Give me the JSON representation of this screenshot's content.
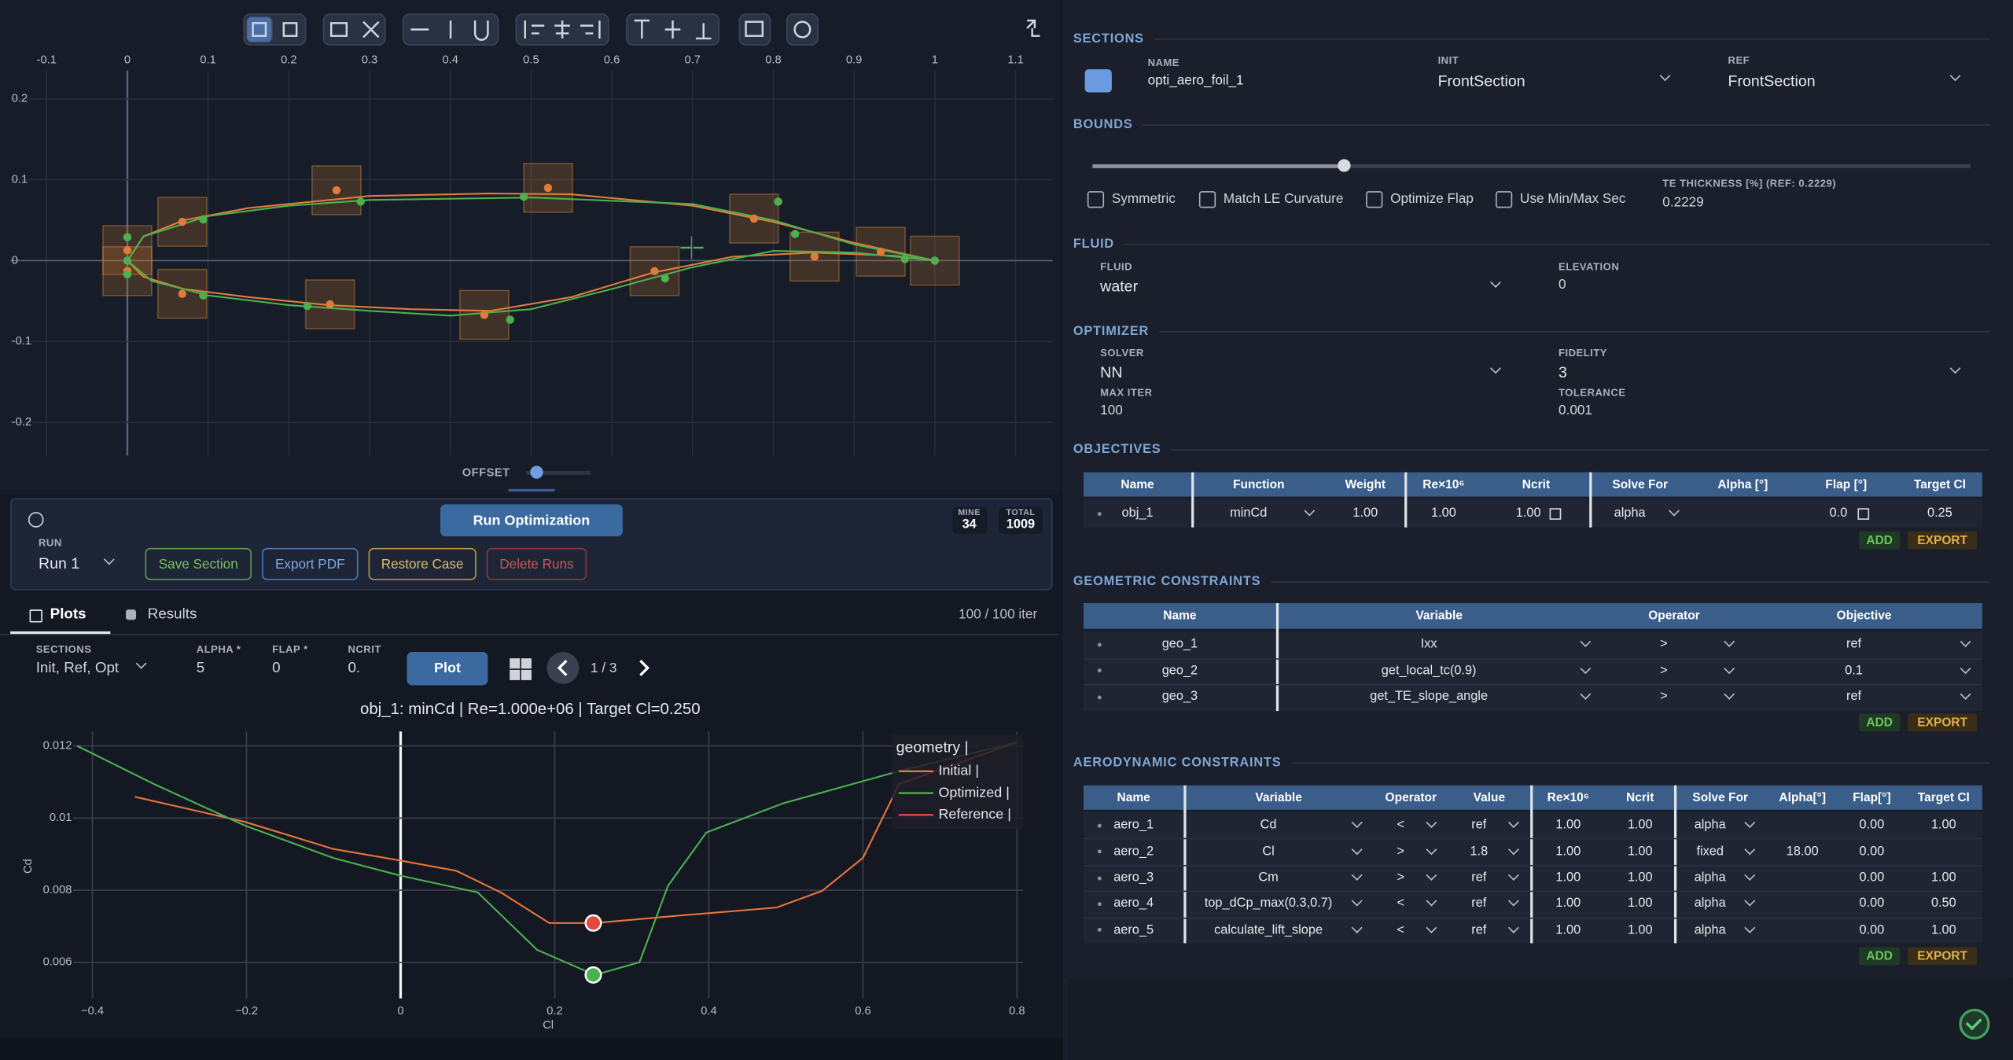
{
  "chart_data": [
    {
      "type": "line",
      "xlim": [
        -0.145,
        1.146
      ],
      "ylim": [
        -0.241,
        0.235
      ],
      "xticks": [
        -0.1,
        0,
        0.1,
        0.2,
        0.3,
        0.4,
        0.5,
        0.6,
        0.7,
        0.8,
        0.9,
        1,
        1.1
      ],
      "yticks": [
        -0.2,
        -0.1,
        0,
        0.1,
        0.2
      ],
      "grid": true,
      "series": [
        {
          "color": "#e07b39",
          "x": [
            0,
            0.02,
            0.07,
            0.15,
            0.3,
            0.45,
            0.55,
            0.7,
            0.8,
            0.9,
            1
          ],
          "values": [
            0,
            0.03,
            0.05,
            0.065,
            0.08,
            0.083,
            0.082,
            0.068,
            0.048,
            0.022,
            0
          ]
        },
        {
          "color": "#e07b39",
          "x": [
            0,
            0.02,
            0.07,
            0.15,
            0.25,
            0.35,
            0.45,
            0.55,
            0.65,
            0.75,
            0.85,
            0.95,
            1
          ],
          "values": [
            0,
            -0.02,
            -0.035,
            -0.045,
            -0.055,
            -0.06,
            -0.062,
            -0.045,
            -0.015,
            0.005,
            0.01,
            0.006,
            0
          ]
        },
        {
          "color": "#4caf50",
          "x": [
            0,
            0.02,
            0.1,
            0.2,
            0.3,
            0.5,
            0.7,
            0.8,
            0.9,
            1
          ],
          "values": [
            0,
            0.03,
            0.055,
            0.068,
            0.075,
            0.078,
            0.07,
            0.05,
            0.02,
            0
          ]
        },
        {
          "color": "#4caf50",
          "x": [
            0,
            0.03,
            0.1,
            0.2,
            0.3,
            0.4,
            0.5,
            0.6,
            0.7,
            0.8,
            0.9,
            1
          ],
          "values": [
            0,
            -0.025,
            -0.043,
            -0.055,
            -0.062,
            -0.068,
            -0.06,
            -0.035,
            -0.008,
            0.012,
            0.01,
            0
          ]
        }
      ],
      "points": [
        {
          "color": "#e07b39",
          "box": true,
          "x": [
            0,
            0,
            0.068,
            0.259,
            0.521,
            0.776,
            0.851,
            0.933,
            1,
            0.068,
            0.251,
            0.442,
            0.653
          ],
          "values": [
            0.013,
            -0.013,
            0.048,
            0.087,
            0.09,
            0.052,
            0.005,
            0.011,
            0,
            -0.041,
            -0.054,
            -0.067,
            -0.013
          ]
        },
        {
          "color": "#4caf50",
          "box": false,
          "x": [
            0,
            0,
            0,
            0.094,
            0.289,
            0.491,
            0.806,
            0.827,
            0.963,
            1,
            0.094,
            0.223,
            0.474,
            0.666
          ],
          "values": [
            0.029,
            0,
            -0.017,
            0.051,
            0.073,
            0.079,
            0.073,
            0.033,
            0.002,
            0,
            -0.043,
            -0.056,
            -0.073,
            -0.022
          ]
        }
      ]
    },
    {
      "type": "line",
      "title": "obj_1: minCd | Re=1.000e+06 | Target Cl=0.250",
      "xlabel": "Cl",
      "ylabel": "Cd",
      "xlim": [
        -0.425,
        0.808
      ],
      "ylim": [
        0.005,
        0.0124
      ],
      "xticks": [
        {
          "value": -0.4,
          "label": "−0.4"
        },
        {
          "value": -0.2,
          "label": "−0.2"
        },
        0,
        0.2,
        0.4,
        0.6,
        0.8
      ],
      "yticks": [
        0.006,
        0.008,
        0.01,
        0.012
      ],
      "grid": true,
      "legend_title": "geometry |",
      "series": [
        {
          "name": "Initial |",
          "color": "#e8743b",
          "x": [
            -0.345,
            -0.203,
            -0.087,
            0,
            0.072,
            0.13,
            0.193,
            0.252,
            0.363,
            0.488,
            0.547,
            0.6,
            0.647,
            0.8
          ],
          "values": [
            0.01059,
            0.0099,
            0.00914,
            0.00882,
            0.00854,
            0.00794,
            0.00709,
            0.00709,
            0.0073,
            0.00752,
            0.00798,
            0.0089,
            0.01094,
            0.0121
          ]
        },
        {
          "name": "Optimized |",
          "color": "#4caf50",
          "x": [
            -0.42,
            -0.32,
            -0.203,
            -0.087,
            0,
            0.1,
            0.177,
            0.252,
            0.31,
            0.347,
            0.397,
            0.497,
            0.647,
            0.8
          ],
          "values": [
            0.012,
            0.01094,
            0.0098,
            0.00889,
            0.0084,
            0.00794,
            0.00635,
            0.00565,
            0.006,
            0.00812,
            0.0096,
            0.01041,
            0.0113,
            0.0121
          ]
        },
        {
          "name": "Reference |",
          "color": "#e04b3c",
          "x": [
            0.25
          ],
          "values": [
            0.00709
          ]
        }
      ],
      "points": [
        {
          "color": "#4caf50",
          "x": [
            0.25
          ],
          "values": [
            0.00565
          ]
        }
      ]
    }
  ],
  "offset": "OFFSET",
  "run_panel": {
    "run_button": "Run Optimization",
    "run_label": "RUN",
    "run_value": "Run 1",
    "buttons": [
      "Save Section",
      "Export PDF",
      "Restore Case",
      "Delete Runs"
    ],
    "mine_label": "MINE",
    "mine": 34,
    "total_label": "TOTAL",
    "total": 1009
  },
  "tabs": [
    "Plots",
    "Results"
  ],
  "iterations": "100 / 100 iter",
  "plot_controls": {
    "sections_label": "SECTIONS",
    "sections": "Init, Ref, Opt",
    "alpha_label": "ALPHA *",
    "alpha": "5",
    "flap_label": "FLAP *",
    "flap": "0",
    "ncrit_label": "NCRIT",
    "ncrit": "0.",
    "plot_button": "Plot",
    "page": "1 / 3"
  },
  "sections": {
    "title": "SECTIONS",
    "name_label": "NAME",
    "name": "opti_aero_foil_1",
    "init_label": "INIT",
    "init": "FrontSection",
    "ref_label": "REF",
    "ref": "FrontSection"
  },
  "bounds": {
    "title": "BOUNDS",
    "options": [
      "Symmetric",
      "Match LE Curvature",
      "Optimize Flap",
      "Use Min/Max Sec"
    ],
    "te_label": "TE THICKNESS [%] (REF: 0.2229)",
    "te_value": "0.2229"
  },
  "fluid": {
    "title": "FLUID",
    "fluid_label": "FLUID",
    "fluid": "water",
    "elevation_label": "ELEVATION",
    "elevation": "0"
  },
  "optimizer": {
    "title": "OPTIMIZER",
    "solver_label": "SOLVER",
    "solver": "NN",
    "fidelity_label": "FIDELITY",
    "fidelity": "3",
    "max_iter_label": "MAX ITER",
    "max_iter": "100",
    "tolerance_label": "TOLERANCE",
    "tolerance": "0.001"
  },
  "objectives": {
    "title": "OBJECTIVES",
    "columns": [
      "Name",
      "Function",
      "Weight",
      "Re×10⁶",
      "Ncrit",
      "Solve For",
      "Alpha [°]",
      "Flap [°]",
      "Target Cl"
    ],
    "rows": [
      [
        "obj_1",
        "minCd",
        "1.00",
        "1.00",
        "1.00",
        "alpha",
        null,
        "0.0",
        "0.25"
      ]
    ],
    "add": "ADD",
    "export": "EXPORT"
  },
  "geometric_constraints": {
    "title": "GEOMETRIC CONSTRAINTS",
    "columns": [
      "Name",
      "Variable",
      "Operator",
      "Objective"
    ],
    "rows": [
      [
        "geo_1",
        "Ixx",
        ">",
        "ref"
      ],
      [
        "geo_2",
        "get_local_tc(0.9)",
        ">",
        "0.1"
      ],
      [
        "geo_3",
        "get_TE_slope_angle",
        ">",
        "ref"
      ]
    ],
    "add": "ADD",
    "export": "EXPORT"
  },
  "aerodynamic_constraints": {
    "title": "AERODYNAMIC CONSTRAINTS",
    "columns": [
      "Name",
      "Variable",
      "Operator",
      "Value",
      "Re×10⁶",
      "Ncrit",
      "Solve For",
      "Alpha[°]",
      "Flap[°]",
      "Target Cl"
    ],
    "rows": [
      [
        "aero_1",
        "Cd",
        "<",
        "ref",
        "1.00",
        "1.00",
        "alpha",
        null,
        "0.00",
        "1.00"
      ],
      [
        "aero_2",
        "Cl",
        ">",
        "1.8",
        "1.00",
        "1.00",
        "fixed",
        "18.00",
        "0.00",
        null
      ],
      [
        "aero_3",
        "Cm",
        ">",
        "ref",
        "1.00",
        "1.00",
        "alpha",
        null,
        "0.00",
        "1.00"
      ],
      [
        "aero_4",
        "top_dCp_max(0.3,0.7)",
        "<",
        "ref",
        "1.00",
        "1.00",
        "alpha",
        null,
        "0.00",
        "0.50"
      ],
      [
        "aero_5",
        "calculate_lift_slope",
        "<",
        "ref",
        "1.00",
        "1.00",
        "alpha",
        null,
        "0.00",
        "1.00"
      ]
    ],
    "add": "ADD",
    "export": "EXPORT"
  }
}
